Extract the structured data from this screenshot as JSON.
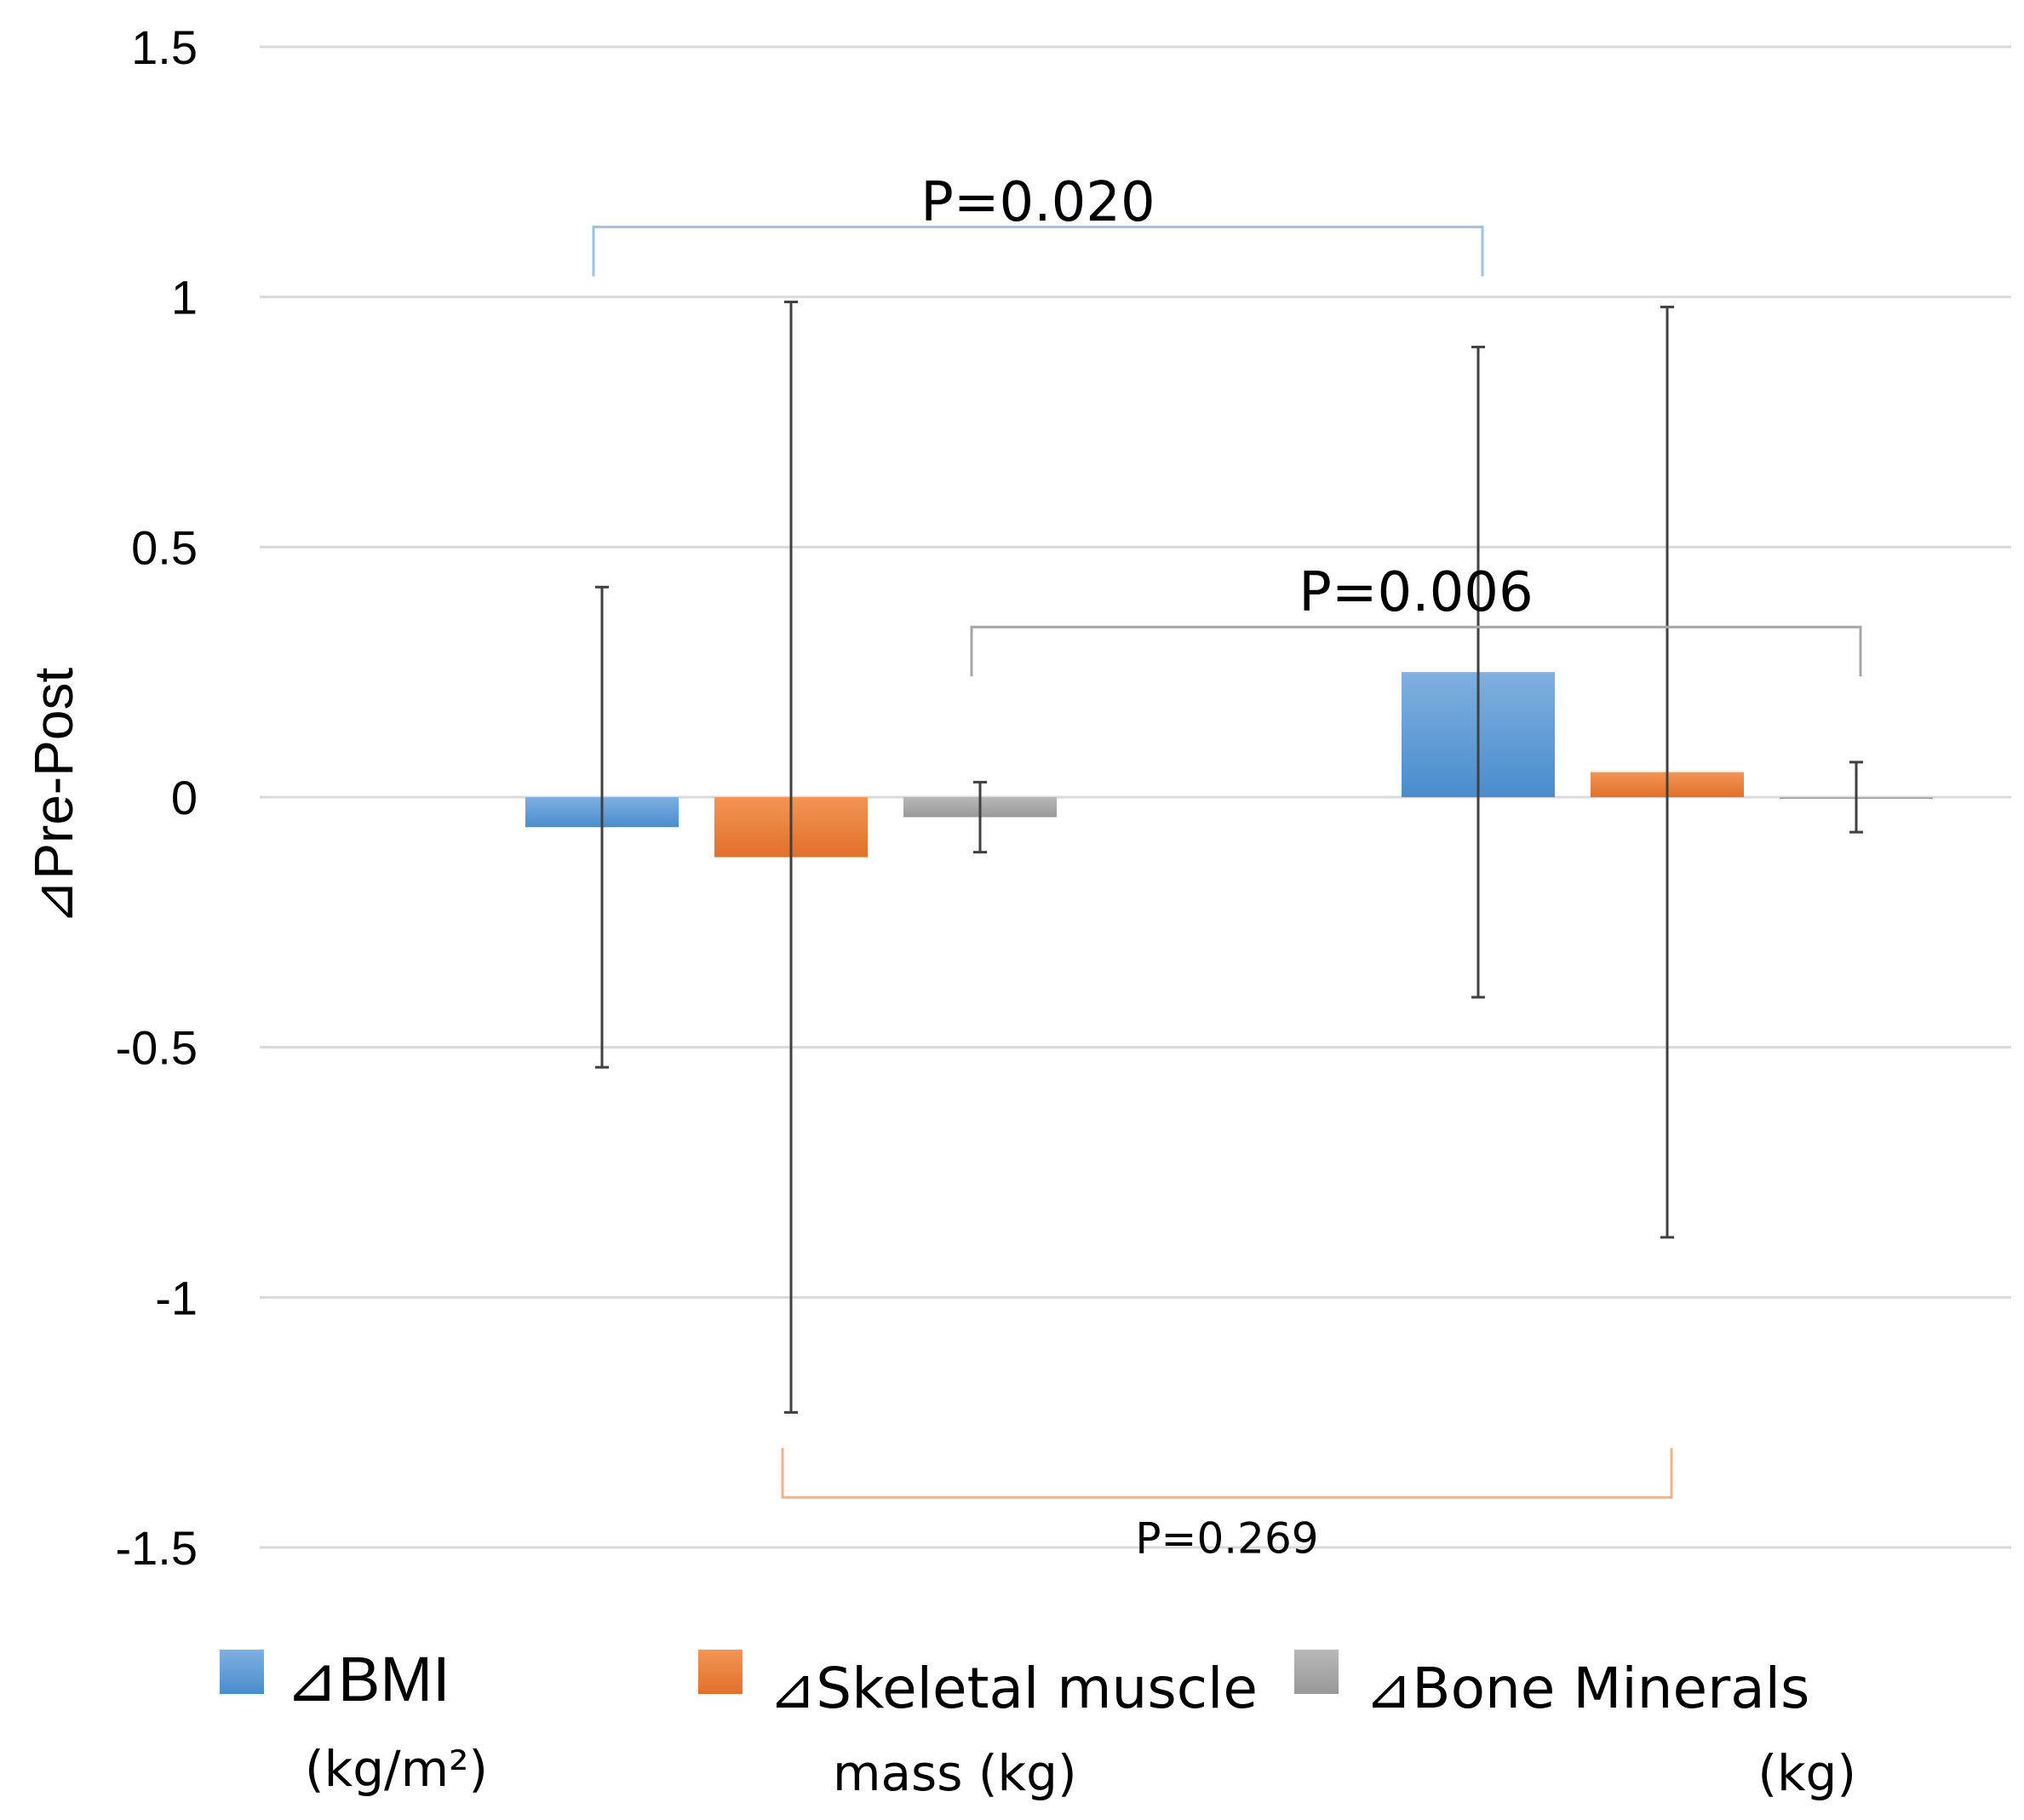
{
  "chart_data": {
    "type": "bar",
    "title": "",
    "xlabel": "",
    "ylabel": "⊿Pre-Post",
    "ylim": [
      -1.5,
      1.5
    ],
    "yticks": [
      1.5,
      1,
      0.5,
      0,
      -0.5,
      -1,
      -1.5
    ],
    "ytick_labels": [
      "1.5",
      "1",
      "0.5",
      "0",
      "-0.5",
      "-1",
      "-1.5"
    ],
    "grid": true,
    "groups": 2,
    "series": [
      {
        "name": "⊿BMI",
        "legend_line1": "⊿BMI",
        "legend_line2": "(kg/m²)",
        "color": "#5b9bd5",
        "values": [
          -0.06,
          0.25
        ],
        "errors": [
          0.48,
          0.65
        ]
      },
      {
        "name": "⊿Skeletal muscle mass",
        "legend_line1": "⊿Skeletal muscle",
        "legend_line2": "mass (kg)",
        "color": "#ed7d31",
        "values": [
          -0.12,
          0.05
        ],
        "errors": [
          1.11,
          0.93
        ]
      },
      {
        "name": "⊿Bone Minerals",
        "legend_line1": "⊿Bone Minerals",
        "legend_line2": "(kg)",
        "color": "#a5a5a5",
        "values": [
          -0.04,
          0.0
        ],
        "errors": [
          0.07,
          0.07
        ]
      }
    ],
    "annotations": [
      {
        "text": "P=0.020",
        "color": "#9dc3e6",
        "from_group": 0,
        "from_series": 0,
        "to_group": 1,
        "to_series": 0,
        "y": 1.14,
        "label_y": 1.19,
        "style": "top"
      },
      {
        "text": "P=0.006",
        "color": "#a6a6a6",
        "from_group": 0,
        "from_series": 2,
        "to_group": 1,
        "to_series": 2,
        "y": 0.34,
        "label_y": 0.41,
        "style": "top"
      },
      {
        "text": "P=0.269",
        "color": "#f4b183",
        "from_group": 0,
        "from_series": 1,
        "to_group": 1,
        "to_series": 1,
        "y": -1.4,
        "label_y": -1.48,
        "style": "bottom"
      }
    ],
    "legend_position": "bottom"
  }
}
